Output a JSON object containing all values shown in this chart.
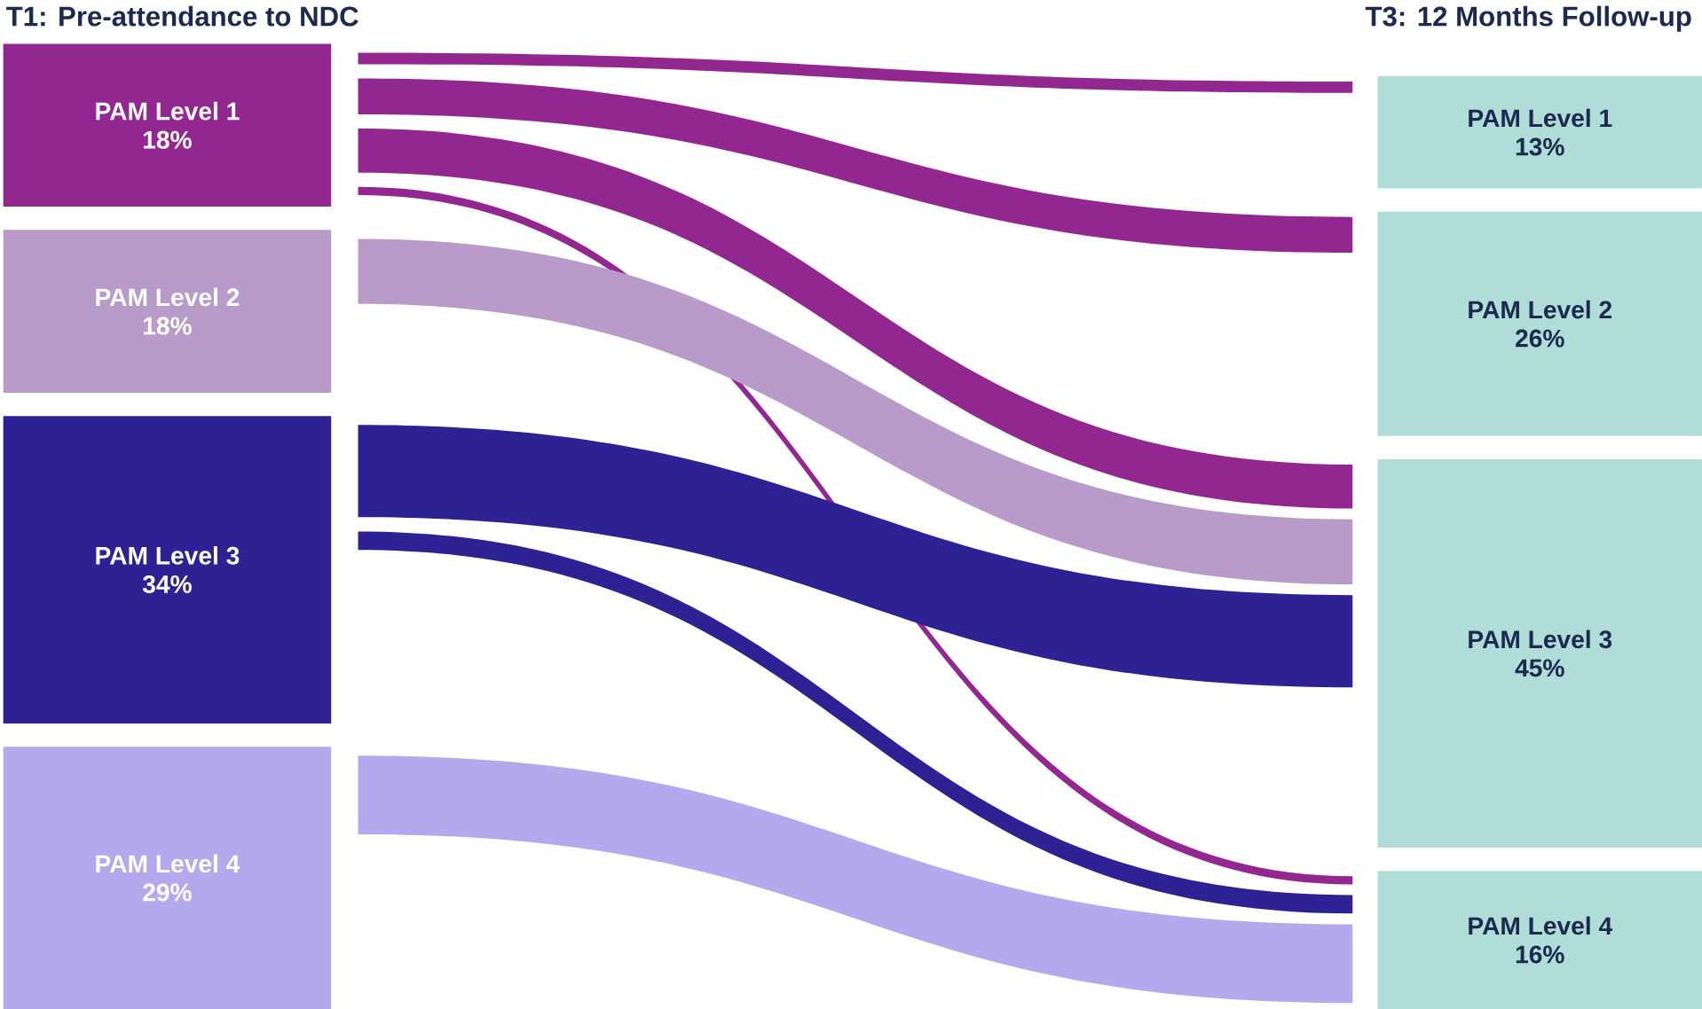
{
  "chart_data": {
    "type": "other",
    "categories": [
      "PAM Level 1",
      "PAM Level 2",
      "PAM Level 3",
      "PAM Level 4"
    ],
    "series": [
      {
        "name": "T1: Pre-attendance to NDC",
        "values": [
          18,
          18,
          34,
          29
        ],
        "value_labels": [
          "18%",
          "18%",
          "34%",
          "29%"
        ],
        "colors": [
          "#92278f",
          "#b99bc9",
          "#2e2194",
          "#b3aaee"
        ]
      },
      {
        "name": "T3: 12 Months Follow-up",
        "values": [
          13,
          26,
          45,
          16
        ],
        "value_labels": [
          "13%",
          "26%",
          "45%",
          "16%"
        ],
        "colors": [
          "#b0ddd8",
          "#b0ddd8",
          "#b0ddd8",
          "#b0ddd8"
        ]
      }
    ]
  }
}
